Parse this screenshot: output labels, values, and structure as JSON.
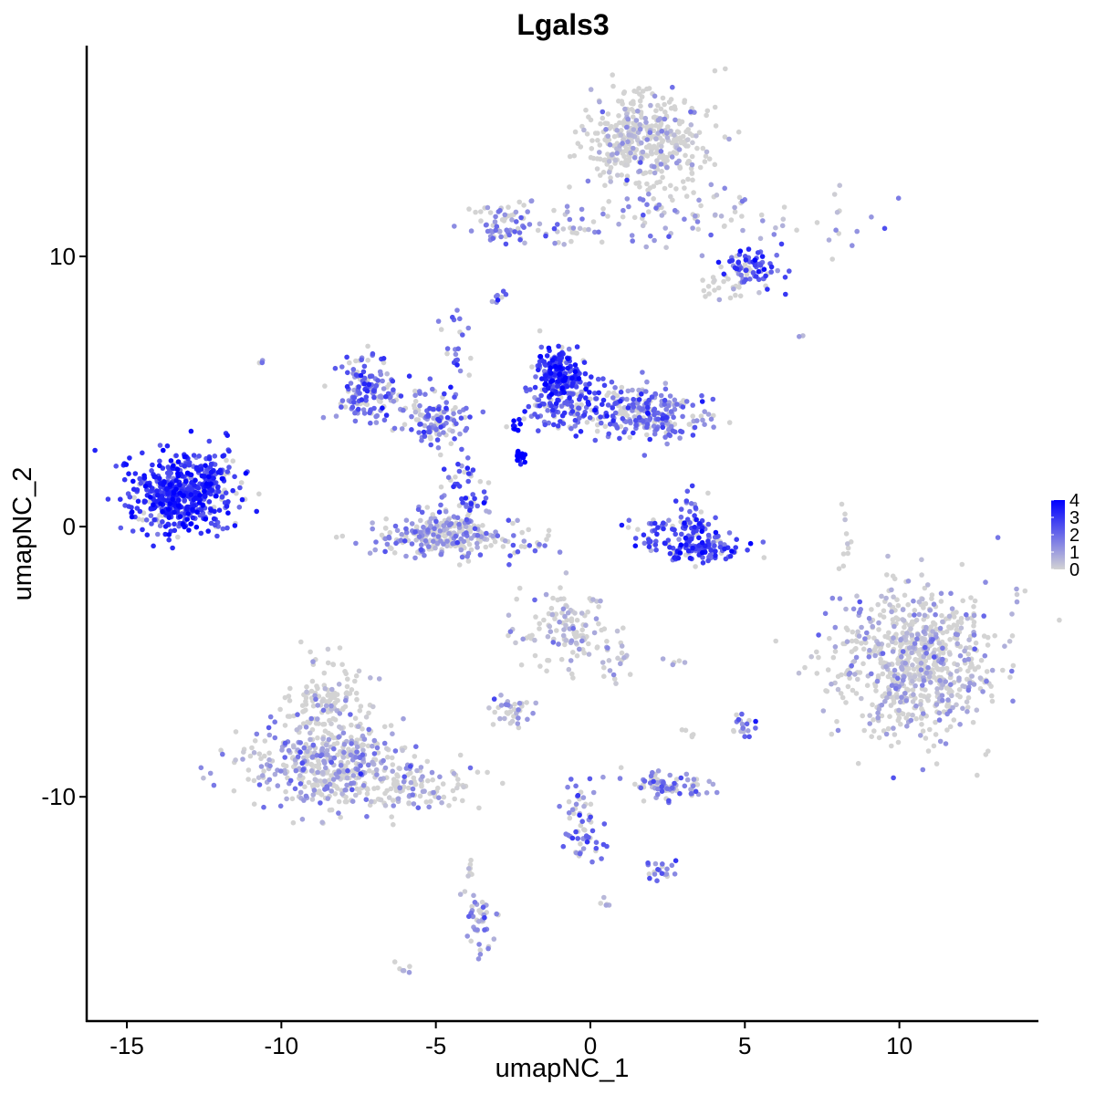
{
  "chart_data": {
    "type": "scatter",
    "title": "Lgals3",
    "xlabel": "umapNC_1",
    "ylabel": "umapNC_2",
    "xlim": [
      -16.3,
      14.5
    ],
    "ylim": [
      -18.3,
      17.8
    ],
    "xticks": [
      -15,
      -10,
      -5,
      0,
      5,
      10
    ],
    "xtick_labels": [
      "-15",
      "-10",
      "-5",
      "0",
      "5",
      "10"
    ],
    "yticks": [
      -10,
      0,
      10
    ],
    "ytick_labels": [
      "-10",
      "0",
      "10"
    ],
    "grid": false,
    "legend": {
      "position": "right",
      "type": "color-gradient",
      "range": [
        0,
        4
      ],
      "ticks": [
        "0",
        "1",
        "2",
        "3",
        "4"
      ],
      "low_color": "#d3d3d3",
      "high_color": "#0000ff"
    },
    "point_color_low": "#d3d3d3",
    "point_color_high": "#0000ff",
    "clusters": [
      {
        "cx": 1.7,
        "cy": 14.3,
        "sx": 1.0,
        "sy": 0.9,
        "n": 420,
        "expr": 0.2
      },
      {
        "cx": 3.5,
        "cy": 11.5,
        "sx": 2.8,
        "sy": 0.6,
        "n": 110,
        "expr": 1.0
      },
      {
        "cx": 5.3,
        "cy": 9.6,
        "sx": 0.5,
        "sy": 0.35,
        "n": 70,
        "expr": 2.5
      },
      {
        "cx": 4.5,
        "cy": 9.0,
        "sx": 0.4,
        "sy": 0.3,
        "n": 25,
        "expr": 0.6
      },
      {
        "cx": -2.8,
        "cy": 11.2,
        "sx": 0.6,
        "sy": 0.4,
        "n": 60,
        "expr": 1.5
      },
      {
        "cx": -1.0,
        "cy": 11.0,
        "sx": 0.8,
        "sy": 0.25,
        "n": 20,
        "expr": 1.2
      },
      {
        "cx": -13.3,
        "cy": 1.2,
        "sx": 0.75,
        "sy": 0.7,
        "n": 520,
        "expr": 3.0
      },
      {
        "cx": -12.0,
        "cy": 1.7,
        "sx": 0.45,
        "sy": 0.8,
        "n": 60,
        "expr": 2.8
      },
      {
        "cx": -7.3,
        "cy": 5.2,
        "sx": 0.5,
        "sy": 0.6,
        "n": 110,
        "expr": 2.0
      },
      {
        "cx": -4.9,
        "cy": 3.8,
        "sx": 0.5,
        "sy": 0.35,
        "n": 80,
        "expr": 1.8
      },
      {
        "cx": -6.0,
        "cy": 4.6,
        "sx": 1.0,
        "sy": 0.5,
        "n": 70,
        "expr": 1.6
      },
      {
        "cx": -4.8,
        "cy": -0.3,
        "sx": 1.2,
        "sy": 0.4,
        "n": 260,
        "expr": 1.0
      },
      {
        "cx": -4.0,
        "cy": 1.2,
        "sx": 0.4,
        "sy": 0.8,
        "n": 60,
        "expr": 2.2
      },
      {
        "cx": -4.4,
        "cy": 6.0,
        "sx": 0.3,
        "sy": 1.2,
        "n": 30,
        "expr": 2.0
      },
      {
        "cx": -1.0,
        "cy": 5.7,
        "sx": 0.4,
        "sy": 0.5,
        "n": 180,
        "expr": 3.0
      },
      {
        "cx": -0.5,
        "cy": 4.5,
        "sx": 0.8,
        "sy": 0.5,
        "n": 150,
        "expr": 2.4
      },
      {
        "cx": 2.0,
        "cy": 4.2,
        "sx": 0.8,
        "sy": 0.5,
        "n": 220,
        "expr": 1.9
      },
      {
        "cx": -2.3,
        "cy": 2.6,
        "sx": 0.1,
        "sy": 0.15,
        "n": 15,
        "expr": 4.0
      },
      {
        "cx": -2.4,
        "cy": 3.9,
        "sx": 0.08,
        "sy": 0.2,
        "n": 8,
        "expr": 4.0
      },
      {
        "cx": 3.5,
        "cy": -0.7,
        "sx": 0.7,
        "sy": 0.3,
        "n": 130,
        "expr": 2.6
      },
      {
        "cx": 3.2,
        "cy": 0.5,
        "sx": 0.3,
        "sy": 0.5,
        "n": 40,
        "expr": 2.6
      },
      {
        "cx": 2.2,
        "cy": -0.2,
        "sx": 0.5,
        "sy": 0.3,
        "n": 30,
        "expr": 2.3
      },
      {
        "cx": -2.0,
        "cy": -0.6,
        "sx": 0.4,
        "sy": 0.6,
        "n": 15,
        "expr": 1.8
      },
      {
        "cx": -3.0,
        "cy": 8.6,
        "sx": 0.15,
        "sy": 0.15,
        "n": 8,
        "expr": 2.0
      },
      {
        "cx": 10.5,
        "cy": -5.0,
        "sx": 1.3,
        "sy": 1.4,
        "n": 750,
        "expr": 0.55
      },
      {
        "cx": 8.3,
        "cy": -0.3,
        "sx": 0.15,
        "sy": 0.6,
        "n": 10,
        "expr": 0.1
      },
      {
        "cx": -0.7,
        "cy": -3.9,
        "sx": 0.8,
        "sy": 0.7,
        "n": 130,
        "expr": 0.4
      },
      {
        "cx": 0.8,
        "cy": -5.0,
        "sx": 0.3,
        "sy": 0.5,
        "n": 15,
        "expr": 0.6
      },
      {
        "cx": -8.6,
        "cy": -8.8,
        "sx": 1.3,
        "sy": 0.8,
        "n": 420,
        "expr": 1.0
      },
      {
        "cx": -8.5,
        "cy": -6.5,
        "sx": 0.6,
        "sy": 0.8,
        "n": 130,
        "expr": 0.2
      },
      {
        "cx": -5.7,
        "cy": -9.6,
        "sx": 1.1,
        "sy": 0.45,
        "n": 120,
        "expr": 0.4
      },
      {
        "cx": -2.6,
        "cy": -6.9,
        "sx": 0.35,
        "sy": 0.3,
        "n": 35,
        "expr": 0.9
      },
      {
        "cx": 2.5,
        "cy": -9.6,
        "sx": 0.55,
        "sy": 0.25,
        "n": 80,
        "expr": 1.4
      },
      {
        "cx": -0.3,
        "cy": -10.5,
        "sx": 0.3,
        "sy": 0.7,
        "n": 40,
        "expr": 1.8
      },
      {
        "cx": 0.0,
        "cy": -11.8,
        "sx": 0.3,
        "sy": 0.3,
        "n": 25,
        "expr": 1.7
      },
      {
        "cx": 2.2,
        "cy": -12.7,
        "sx": 0.3,
        "sy": 0.2,
        "n": 20,
        "expr": 1.5
      },
      {
        "cx": -3.6,
        "cy": -14.6,
        "sx": 0.25,
        "sy": 0.6,
        "n": 45,
        "expr": 1.2
      },
      {
        "cx": -3.9,
        "cy": -12.6,
        "sx": 0.1,
        "sy": 0.4,
        "n": 8,
        "expr": 0.2
      },
      {
        "cx": 5.0,
        "cy": -7.4,
        "sx": 0.2,
        "sy": 0.25,
        "n": 20,
        "expr": 1.5
      },
      {
        "cx": 3.2,
        "cy": -7.6,
        "sx": 0.1,
        "sy": 0.1,
        "n": 5,
        "expr": 0.5
      },
      {
        "cx": 2.8,
        "cy": -5.0,
        "sx": 0.2,
        "sy": 0.1,
        "n": 5,
        "expr": 0.5
      },
      {
        "cx": -6.1,
        "cy": -16.3,
        "sx": 0.15,
        "sy": 0.1,
        "n": 6,
        "expr": 1.0
      },
      {
        "cx": 0.6,
        "cy": -14.0,
        "sx": 0.15,
        "sy": 0.15,
        "n": 5,
        "expr": 0.4
      },
      {
        "cx": -10.6,
        "cy": 6.1,
        "sx": 0.1,
        "sy": 0.1,
        "n": 3,
        "expr": 0.8
      },
      {
        "cx": 6.8,
        "cy": 7.1,
        "sx": 0.05,
        "sy": 0.05,
        "n": 2,
        "expr": 1.2
      }
    ]
  }
}
